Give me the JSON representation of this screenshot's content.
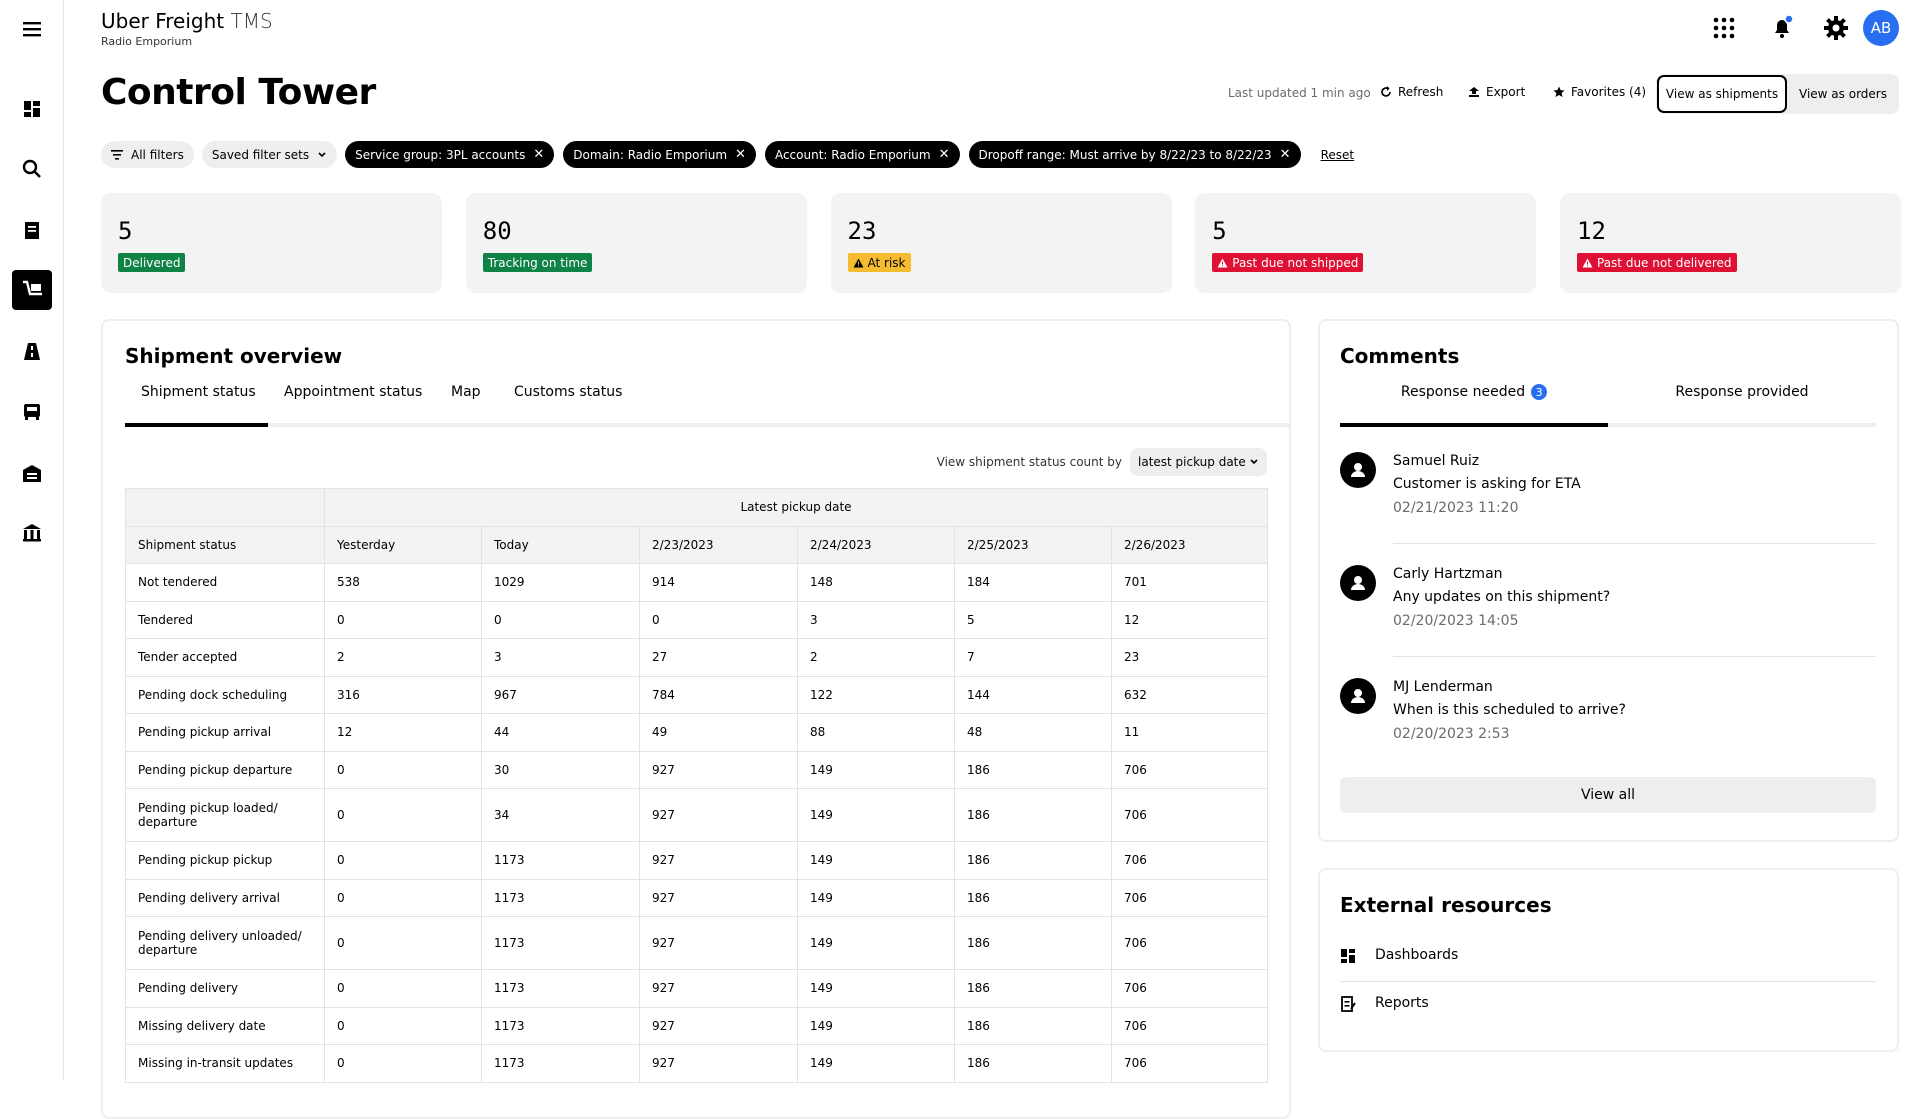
{
  "header": {
    "brand": "Uber Freight",
    "product": "TMS",
    "account": "Radio Emporium",
    "avatar": "AB"
  },
  "page": {
    "title": "Control Tower",
    "last_updated": "Last updated 1 min ago",
    "actions": [
      "Refresh",
      "Export",
      "Favorites (4)"
    ],
    "views": [
      "View as shipments",
      "View as orders"
    ]
  },
  "filters": {
    "all": "All filters",
    "saved": "Saved filter sets",
    "chips": [
      "Service group: 3PL accounts",
      "Domain: Radio Emporium",
      "Account: Radio Emporium",
      "Dropoff range: Must arrive by 8/22/23 to 8/22/23"
    ],
    "reset": "Reset"
  },
  "kpis": [
    {
      "value": 5,
      "label": "Delivered",
      "color": "#0e8345"
    },
    {
      "value": 80,
      "label": "Tracking on time",
      "color": "#0e8345"
    },
    {
      "value": 23,
      "label": "At risk",
      "color": "#f6bc2f"
    },
    {
      "value": 5,
      "label": "Past due not shipped",
      "color": "#de1135"
    },
    {
      "value": 12,
      "label": "Past due not delivered",
      "color": "#de1135"
    }
  ],
  "shipment_overview": {
    "title": "Shipment overview",
    "tabs": [
      "Shipment status",
      "Appointment status",
      "Map",
      "Customs status"
    ],
    "count_by_label": "View shipment status count by",
    "count_by_value": "latest pickup date",
    "table": {
      "group_header": "Latest pickup date",
      "columns": [
        "Shipment status",
        "Yesterday",
        "Today",
        "2/23/2023",
        "2/24/2023",
        "2/25/2023",
        "2/26/2023"
      ],
      "rows": [
        [
          "Not tendered",
          538,
          1029,
          914,
          148,
          184,
          701
        ],
        [
          "Tendered",
          0,
          0,
          0,
          3,
          5,
          12
        ],
        [
          "Tender accepted",
          2,
          3,
          27,
          2,
          7,
          23
        ],
        [
          "Pending dock scheduling",
          316,
          967,
          784,
          122,
          144,
          632
        ],
        [
          "Pending pickup arrival",
          12,
          44,
          49,
          88,
          48,
          11
        ],
        [
          "Pending pickup departure",
          0,
          30,
          927,
          149,
          186,
          706
        ],
        [
          "Pending pickup loaded/ departure",
          0,
          34,
          927,
          149,
          186,
          706
        ],
        [
          "Pending pickup pickup",
          0,
          1173,
          927,
          149,
          186,
          706
        ],
        [
          "Pending delivery arrival",
          0,
          1173,
          927,
          149,
          186,
          706
        ],
        [
          "Pending delivery unloaded/ departure",
          0,
          1173,
          927,
          149,
          186,
          706
        ],
        [
          "Pending delivery",
          0,
          1173,
          927,
          149,
          186,
          706
        ],
        [
          "Missing delivery date",
          0,
          1173,
          927,
          149,
          186,
          706
        ],
        [
          "Missing in-transit updates",
          0,
          1173,
          927,
          149,
          186,
          706
        ]
      ]
    }
  },
  "comments": {
    "title": "Comments",
    "tabs": [
      "Response needed",
      "Response provided"
    ],
    "badge": 3,
    "items": [
      {
        "name": "Samuel Ruiz",
        "message": "Customer is asking for ETA",
        "time": "02/21/2023 11:20"
      },
      {
        "name": "Carly Hartzman",
        "message": "Any updates on this shipment?",
        "time": "02/20/2023 14:05"
      },
      {
        "name": "MJ Lenderman",
        "message": "When is this scheduled to arrive?",
        "time": "02/20/2023 2:53"
      }
    ],
    "view_all": "View all"
  },
  "external_resources": {
    "title": "External resources",
    "links": [
      "Dashboards",
      "Reports"
    ]
  }
}
